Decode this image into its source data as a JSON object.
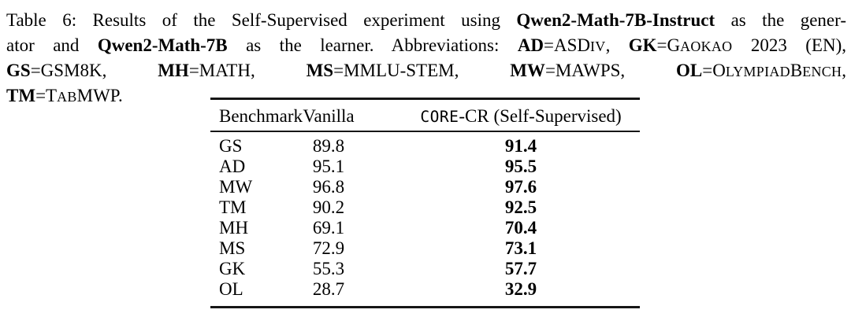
{
  "colors": {
    "background": "#ffffff",
    "text": "#000000",
    "rule": "#161616"
  },
  "caption": {
    "label": "Table 6:",
    "lines": [
      {
        "segments": [
          {
            "t": "Table 6: Results of the Self-Supervised experiment using "
          },
          {
            "t": "Qwen2-Math-7B-Instruct",
            "b": true
          },
          {
            "t": " as the gener-"
          }
        ]
      },
      {
        "segments": [
          {
            "t": "ator and "
          },
          {
            "t": "Qwen2-Math-7B",
            "b": true
          },
          {
            "t": " as the learner. Abbreviations: "
          },
          {
            "t": "AD",
            "b": true
          },
          {
            "t": "=ASD"
          },
          {
            "t": "IV",
            "sc": true
          },
          {
            "t": ", "
          },
          {
            "t": "GK",
            "b": true
          },
          {
            "t": "=G"
          },
          {
            "t": "AOKAO",
            "sc": true
          },
          {
            "t": " 2023 (EN),"
          }
        ]
      },
      {
        "segments": [
          {
            "t": "GS",
            "b": true
          },
          {
            "t": "=GSM8K, "
          },
          {
            "t": "MH",
            "b": true
          },
          {
            "t": "=MATH, "
          },
          {
            "t": "MS",
            "b": true
          },
          {
            "t": "=MMLU-STEM, "
          },
          {
            "t": "MW",
            "b": true
          },
          {
            "t": "=MAWPS, "
          },
          {
            "t": "OL",
            "b": true
          },
          {
            "t": "=O"
          },
          {
            "t": "LYMPIAD",
            "sc": true
          },
          {
            "t": "B"
          },
          {
            "t": "ENCH",
            "sc": true
          },
          {
            "t": ","
          }
        ]
      },
      {
        "segments": [
          {
            "t": "TM",
            "b": true
          },
          {
            "t": "=T"
          },
          {
            "t": "AB",
            "sc": true
          },
          {
            "t": "MWP."
          }
        ]
      }
    ]
  },
  "table": {
    "columns": [
      {
        "label": "Benchmark"
      },
      {
        "label": "Vanilla"
      },
      {
        "label_segments": [
          {
            "t": "CORE",
            "tt": true
          },
          {
            "t": "-CR (Self-Supervised)"
          }
        ]
      }
    ],
    "rows": [
      {
        "benchmark": "GS",
        "vanilla": "89.8",
        "core_cr": "91.4"
      },
      {
        "benchmark": "AD",
        "vanilla": "95.1",
        "core_cr": "95.5"
      },
      {
        "benchmark": "MW",
        "vanilla": "96.8",
        "core_cr": "97.6"
      },
      {
        "benchmark": "TM",
        "vanilla": "90.2",
        "core_cr": "92.5"
      },
      {
        "benchmark": "MH",
        "vanilla": "69.1",
        "core_cr": "70.4"
      },
      {
        "benchmark": "MS",
        "vanilla": "72.9",
        "core_cr": "73.1"
      },
      {
        "benchmark": "GK",
        "vanilla": "55.3",
        "core_cr": "57.7"
      },
      {
        "benchmark": "OL",
        "vanilla": "28.7",
        "core_cr": "32.9"
      }
    ]
  }
}
